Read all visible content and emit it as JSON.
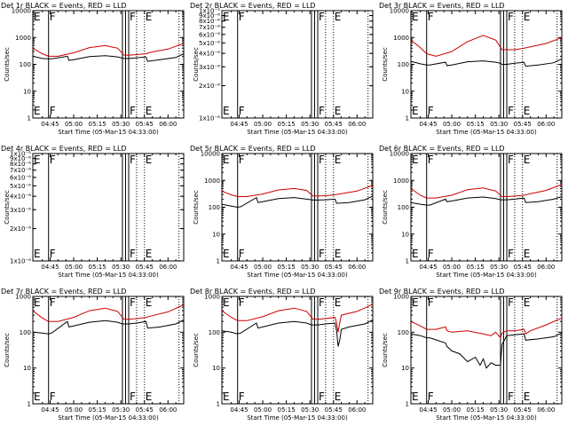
{
  "chart_data": {
    "type": "line",
    "x_tick_labels": [
      "04:45",
      "05:00",
      "05:15",
      "05:30",
      "05:45",
      "06:00"
    ],
    "x_tick_minutes": [
      45,
      60,
      75,
      90,
      105,
      120
    ],
    "x_range_minutes": [
      34,
      130
    ],
    "xlabel": "Start Time (05-Mar-15 04:33:00)",
    "ylabel": "Counts/sec",
    "y_scale": "log",
    "colors": {
      "events": "#000000",
      "lld": "#cc0000"
    },
    "vertical_lines": [
      {
        "minute": 44,
        "label": "F",
        "style": "solid"
      },
      {
        "minute": 91,
        "label": "",
        "style": "solid"
      },
      {
        "minute": 93,
        "label": "",
        "style": "solid"
      },
      {
        "minute": 95,
        "label": "F",
        "style": "solid"
      },
      {
        "minute": 100,
        "label": "",
        "style": "dotted"
      },
      {
        "minute": 105,
        "label": "E",
        "style": "dotted"
      },
      {
        "minute": 127,
        "label": "",
        "style": "dotted"
      }
    ],
    "panels": [
      {
        "title": "Det 1r  BLACK = Events, RED = LLD",
        "ylim": [
          1,
          10000
        ],
        "y_ticks": [
          1,
          10,
          100,
          1000,
          10000
        ],
        "y_tick_labels": [
          "1",
          "10",
          "100",
          "1000",
          "10000"
        ],
        "series": [
          {
            "x": [
              34,
              40,
              44,
              46,
              56,
              57,
              60,
              70,
              80,
              88,
              91,
              92,
              95,
              100,
              106,
              107,
              115,
              125,
              130
            ],
            "y": [
              200,
              165,
              160,
              160,
              200,
              140,
              150,
              195,
              210,
              190,
              170,
              165,
              165,
              175,
              190,
              130,
              150,
              180,
              250
            ]
          },
          {
            "x": [
              34,
              40,
              44,
              50,
              60,
              70,
              80,
              88,
              92,
              95,
              100,
              106,
              110,
              120,
              130
            ],
            "y": [
              400,
              250,
              200,
              200,
              270,
              420,
              500,
              400,
              220,
              220,
              230,
              250,
              290,
              370,
              600
            ]
          }
        ]
      },
      {
        "title": "Det 2r  BLACK = Events, RED = LLD",
        "ylim": [
          1e-06,
          1e-05
        ],
        "y_ticks": [
          1e-06,
          2e-06,
          3e-06,
          4e-06,
          5e-06,
          6e-06,
          7e-06,
          8e-06,
          9e-06,
          1e-05
        ],
        "y_tick_labels": [
          "1x10⁻⁶",
          "2x10⁻⁶",
          "3x10⁻⁶",
          "4x10⁻⁶",
          "5x10⁻⁶",
          "6x10⁻⁶",
          "7x10⁻⁶",
          "8x10⁻⁶",
          "9x10⁻⁶",
          "1x10⁻⁵"
        ],
        "series": []
      },
      {
        "title": "Det 3r  BLACK = Events, RED = LLD",
        "ylim": [
          1,
          10000
        ],
        "y_ticks": [
          1,
          10,
          100,
          1000,
          10000
        ],
        "y_tick_labels": [
          "1",
          "10",
          "100",
          "1000",
          "10000"
        ],
        "series": [
          {
            "x": [
              34,
              40,
              44,
              46,
              56,
              57,
              60,
              70,
              80,
              88,
              91,
              92,
              95,
              100,
              106,
              107,
              115,
              125,
              130
            ],
            "y": [
              130,
              105,
              95,
              95,
              120,
              90,
              95,
              125,
              135,
              120,
              110,
              100,
              100,
              110,
              120,
              85,
              95,
              115,
              160
            ]
          },
          {
            "x": [
              34,
              40,
              44,
              50,
              60,
              70,
              80,
              88,
              92,
              95,
              100,
              106,
              110,
              120,
              130
            ],
            "y": [
              800,
              420,
              250,
              200,
              300,
              700,
              1200,
              800,
              350,
              350,
              350,
              400,
              450,
              600,
              1000
            ]
          }
        ]
      },
      {
        "title": "Det 4r  BLACK = Events, RED = LLD",
        "ylim": [
          1e-06,
          1e-05
        ],
        "y_ticks": [
          1e-06,
          2e-06,
          3e-06,
          4e-06,
          5e-06,
          6e-06,
          7e-06,
          8e-06,
          9e-06,
          1e-05
        ],
        "y_tick_labels": [
          "1x10⁻⁶",
          "2x10⁻⁶",
          "3x10⁻⁶",
          "4x10⁻⁶",
          "5x10⁻⁶",
          "6x10⁻⁶",
          "7x10⁻⁶",
          "8x10⁻⁶",
          "9x10⁻⁶",
          "1x10⁻⁵"
        ],
        "series": []
      },
      {
        "title": "Det 5r  BLACK = Events, RED = LLD",
        "ylim": [
          1,
          10000
        ],
        "y_ticks": [
          1,
          10,
          100,
          1000,
          10000
        ],
        "y_tick_labels": [
          "1",
          "10",
          "100",
          "1000",
          "10000"
        ],
        "series": [
          {
            "x": [
              34,
              40,
              44,
              46,
              56,
              57,
              60,
              70,
              80,
              88,
              91,
              92,
              95,
              100,
              106,
              107,
              115,
              125,
              130
            ],
            "y": [
              130,
              110,
              100,
              105,
              230,
              150,
              160,
              210,
              230,
              200,
              190,
              185,
              185,
              190,
              200,
              140,
              150,
              190,
              260
            ]
          },
          {
            "x": [
              34,
              40,
              44,
              50,
              60,
              70,
              80,
              88,
              92,
              95,
              100,
              106,
              110,
              120,
              130
            ],
            "y": [
              400,
              290,
              250,
              250,
              310,
              440,
              500,
              420,
              260,
              260,
              270,
              290,
              320,
              400,
              650
            ]
          }
        ]
      },
      {
        "title": "Det 6r  BLACK = Events, RED = LLD",
        "ylim": [
          1,
          10000
        ],
        "y_ticks": [
          1,
          10,
          100,
          1000,
          10000
        ],
        "y_tick_labels": [
          "1",
          "10",
          "100",
          "1000",
          "10000"
        ],
        "series": [
          {
            "x": [
              34,
              40,
              44,
              46,
              56,
              57,
              60,
              70,
              80,
              88,
              91,
              92,
              95,
              100,
              106,
              107,
              115,
              125,
              130
            ],
            "y": [
              150,
              130,
              120,
              120,
              200,
              160,
              170,
              220,
              240,
              210,
              190,
              190,
              190,
              200,
              220,
              150,
              160,
              200,
              250
            ]
          },
          {
            "x": [
              34,
              40,
              44,
              50,
              60,
              70,
              80,
              88,
              92,
              95,
              100,
              106,
              110,
              120,
              130
            ],
            "y": [
              500,
              280,
              220,
              220,
              280,
              450,
              520,
              400,
              250,
              250,
              260,
              280,
              320,
              420,
              700
            ]
          }
        ]
      },
      {
        "title": "Det 7r  BLACK = Events, RED = LLD",
        "ylim": [
          1,
          1000
        ],
        "y_ticks": [
          1,
          10,
          100,
          1000
        ],
        "y_tick_labels": [
          "1",
          "10",
          "100",
          "1000"
        ],
        "series": [
          {
            "x": [
              34,
              40,
              44,
              46,
              56,
              57,
              60,
              70,
              80,
              88,
              91,
              92,
              95,
              100,
              106,
              107,
              115,
              125,
              130
            ],
            "y": [
              100,
              95,
              90,
              95,
              200,
              140,
              150,
              190,
              210,
              190,
              170,
              170,
              170,
              180,
              200,
              130,
              140,
              170,
              220
            ]
          },
          {
            "x": [
              34,
              40,
              44,
              50,
              60,
              70,
              80,
              88,
              92,
              95,
              100,
              106,
              110,
              120,
              130
            ],
            "y": [
              400,
              250,
              200,
              200,
              260,
              400,
              470,
              380,
              230,
              230,
              240,
              260,
              290,
              370,
              580
            ]
          }
        ]
      },
      {
        "title": "Det 8r  BLACK = Events, RED = LLD",
        "ylim": [
          1,
          1000
        ],
        "y_ticks": [
          1,
          10,
          100,
          1000
        ],
        "y_tick_labels": [
          "1",
          "10",
          "100",
          "1000"
        ],
        "series": [
          {
            "x": [
              34,
              40,
              44,
              46,
              56,
              57,
              60,
              70,
              80,
              88,
              91,
              92,
              95,
              100,
              106,
              107,
              108,
              109,
              110,
              115,
              125,
              130
            ],
            "y": [
              110,
              100,
              90,
              95,
              180,
              130,
              140,
              180,
              200,
              180,
              160,
              160,
              160,
              170,
              180,
              110,
              40,
              60,
              120,
              140,
              170,
              220
            ]
          },
          {
            "x": [
              34,
              40,
              44,
              50,
              60,
              70,
              80,
              88,
              92,
              95,
              100,
              106,
              107,
              108,
              109,
              110,
              120,
              130
            ],
            "y": [
              400,
              260,
              210,
              210,
              270,
              400,
              470,
              380,
              230,
              230,
              240,
              260,
              180,
              100,
              180,
              300,
              380,
              600
            ]
          }
        ]
      },
      {
        "title": "Det 9r  BLACK = Events, RED = LLD",
        "ylim": [
          1,
          1000
        ],
        "y_ticks": [
          1,
          10,
          100,
          1000
        ],
        "y_tick_labels": [
          "1",
          "10",
          "100",
          "1000"
        ],
        "series": [
          {
            "x": [
              34,
              40,
              44,
              46,
              56,
              57,
              60,
              65,
              70,
              75,
              78,
              80,
              82,
              85,
              88,
              91,
              92,
              95,
              100,
              106,
              107,
              115,
              125,
              130
            ],
            "y": [
              90,
              80,
              70,
              70,
              50,
              40,
              30,
              25,
              15,
              20,
              12,
              18,
              10,
              14,
              12,
              12,
              45,
              80,
              85,
              90,
              60,
              65,
              75,
              95
            ]
          },
          {
            "x": [
              34,
              40,
              44,
              50,
              56,
              57,
              60,
              70,
              80,
              85,
              88,
              91,
              92,
              95,
              100,
              106,
              107,
              110,
              120,
              130
            ],
            "y": [
              200,
              150,
              120,
              120,
              140,
              110,
              100,
              110,
              90,
              80,
              100,
              70,
              95,
              110,
              110,
              120,
              90,
              110,
              160,
              250
            ]
          }
        ]
      }
    ]
  }
}
